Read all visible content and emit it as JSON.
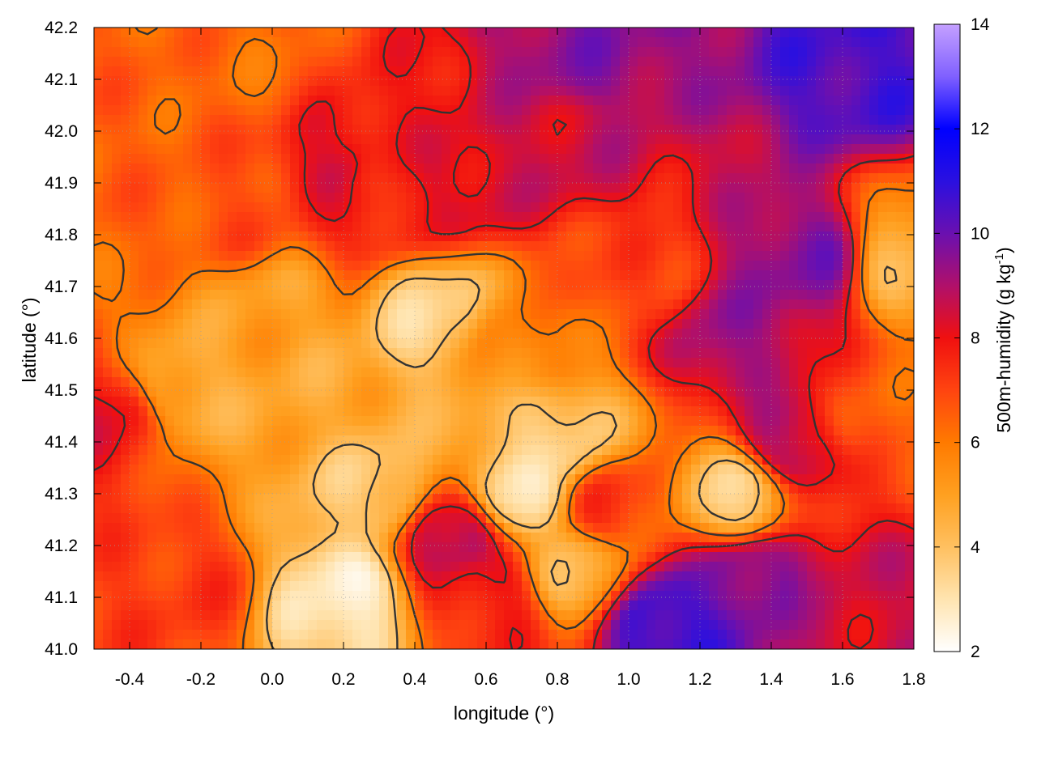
{
  "chart_data": {
    "type": "heatmap",
    "title": "",
    "xlabel": "longitude (°)",
    "ylabel": "latitude (°)",
    "xlim": [
      -0.5,
      1.8
    ],
    "ylim": [
      41.0,
      42.2
    ],
    "x_ticks": [
      -0.4,
      -0.2,
      0.0,
      0.2,
      0.4,
      0.6,
      0.8,
      1.0,
      1.2,
      1.4,
      1.6,
      1.8
    ],
    "x_tick_labels": [
      "-0.4",
      "-0.2",
      "0.0",
      "0.2",
      "0.4",
      "0.6",
      "0.8",
      "1.0",
      "1.2",
      "1.4",
      "1.6",
      "1.8"
    ],
    "y_ticks": [
      41.0,
      41.1,
      41.2,
      41.3,
      41.4,
      41.5,
      41.6,
      41.7,
      41.8,
      41.9,
      42.0,
      42.1,
      42.2
    ],
    "y_tick_labels": [
      "41.0",
      "41.1",
      "41.2",
      "41.3",
      "41.4",
      "41.5",
      "41.6",
      "41.7",
      "41.8",
      "41.9",
      "42.0",
      "42.1",
      "42.2"
    ],
    "grid": true,
    "colorbar": {
      "label_main": "500m-humidity (g kg",
      "label_sup": "-1",
      "label_close": ")",
      "range": [
        2,
        14
      ],
      "ticks": [
        2,
        4,
        6,
        8,
        10,
        12,
        14
      ],
      "tick_labels": [
        "2",
        "4",
        "6",
        "8",
        "10",
        "12",
        "14"
      ],
      "palette": [
        {
          "value": 2,
          "color": "#ffffff"
        },
        {
          "value": 3,
          "color": "#ffe4b0"
        },
        {
          "value": 4,
          "color": "#ffc060"
        },
        {
          "value": 5,
          "color": "#ffa020"
        },
        {
          "value": 6,
          "color": "#ff7a00"
        },
        {
          "value": 7,
          "color": "#ff4410"
        },
        {
          "value": 8,
          "color": "#f01010"
        },
        {
          "value": 9,
          "color": "#b0106a"
        },
        {
          "value": 10,
          "color": "#6a10b0"
        },
        {
          "value": 11,
          "color": "#2a10e0"
        },
        {
          "value": 12,
          "color": "#0000ff"
        },
        {
          "value": 13,
          "color": "#8060ff"
        },
        {
          "value": 14,
          "color": "#c4a0ff"
        }
      ]
    },
    "field_features": [
      {
        "lon": -0.3,
        "lat": 41.95,
        "humidity": 6.5
      },
      {
        "lon": -0.05,
        "lat": 42.12,
        "humidity": 6.3
      },
      {
        "lon": 0.18,
        "lat": 41.95,
        "humidity": 8.2
      },
      {
        "lon": 0.3,
        "lat": 41.85,
        "humidity": 7.8
      },
      {
        "lon": 0.55,
        "lat": 41.9,
        "humidity": 8.4
      },
      {
        "lon": 0.85,
        "lat": 41.97,
        "humidity": 8.6
      },
      {
        "lon": 0.9,
        "lat": 42.15,
        "humidity": 9.5
      },
      {
        "lon": 1.65,
        "lat": 42.12,
        "humidity": 10.5
      },
      {
        "lon": 1.3,
        "lat": 41.6,
        "humidity": 9.2
      },
      {
        "lon": 1.5,
        "lat": 41.75,
        "humidity": 9.6
      },
      {
        "lon": 1.45,
        "lat": 41.4,
        "humidity": 8.8
      },
      {
        "lon": 1.1,
        "lat": 41.05,
        "humidity": 10.8
      },
      {
        "lon": 1.35,
        "lat": 41.13,
        "humidity": 9.8
      },
      {
        "lon": 1.6,
        "lat": 41.1,
        "humidity": 8.5
      },
      {
        "lon": 0.5,
        "lat": 41.22,
        "humidity": 9.0
      },
      {
        "lon": 0.62,
        "lat": 41.1,
        "humidity": 7.8
      },
      {
        "lon": -0.45,
        "lat": 41.45,
        "humidity": 8.0
      },
      {
        "lon": -0.25,
        "lat": 41.12,
        "humidity": 7.2
      },
      {
        "lon": 0.95,
        "lat": 41.28,
        "humidity": 7.2
      },
      {
        "lon": 0.2,
        "lat": 41.1,
        "humidity": 2.8
      },
      {
        "lon": 0.3,
        "lat": 41.3,
        "humidity": 3.8
      },
      {
        "lon": 0.45,
        "lat": 41.65,
        "humidity": 3.5
      },
      {
        "lon": 0.8,
        "lat": 41.4,
        "humidity": 3.6
      },
      {
        "lon": 0.7,
        "lat": 41.3,
        "humidity": 3.2
      },
      {
        "lon": 1.3,
        "lat": 41.3,
        "humidity": 3.8
      },
      {
        "lon": 0.1,
        "lat": 41.5,
        "humidity": 4.8
      },
      {
        "lon": -0.25,
        "lat": 41.5,
        "humidity": 4.6
      },
      {
        "lon": 0.0,
        "lat": 41.65,
        "humidity": 5.0
      },
      {
        "lon": 0.85,
        "lat": 41.15,
        "humidity": 4.5
      },
      {
        "lon": 0.3,
        "lat": 41.9,
        "humidity": 7.5
      },
      {
        "lon": 1.0,
        "lat": 41.72,
        "humidity": 7.0
      },
      {
        "lon": 0.7,
        "lat": 41.6,
        "humidity": 5.8
      },
      {
        "lon": -0.1,
        "lat": 41.85,
        "humidity": 6.8
      },
      {
        "lon": 1.78,
        "lat": 41.75,
        "humidity": 4.5
      },
      {
        "lon": 1.7,
        "lat": 41.45,
        "humidity": 6.5
      }
    ],
    "contour_levels": [
      4,
      6,
      8
    ]
  }
}
